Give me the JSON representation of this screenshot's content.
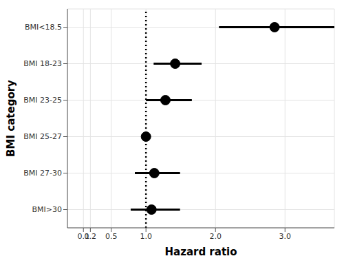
{
  "chart_data": {
    "type": "forest",
    "categories": [
      "BMI<18.5",
      "BMI 18-23",
      "BMI 23-25",
      "BMI 25-27",
      "BMI 27-30",
      "BMI>30"
    ],
    "values": [
      2.85,
      1.42,
      1.28,
      1.0,
      1.12,
      1.08
    ],
    "ci_lower": [
      2.05,
      1.11,
      1.0,
      null,
      0.84,
      0.78
    ],
    "ci_upper": [
      3.75,
      1.8,
      1.66,
      null,
      1.49,
      1.49
    ],
    "color": "#000000",
    "reference_x": 1,
    "xlabel": "Hazard ratio",
    "ylabel": "BMI category",
    "xlim": [
      -0.13,
      3.71
    ],
    "xticks": [
      {
        "value": 0.1,
        "label": "0.1"
      },
      {
        "value": 0.2,
        "label": "0.2"
      },
      {
        "value": 0.5,
        "label": "0.5"
      },
      {
        "value": 1,
        "label": "1.0"
      },
      {
        "value": 2,
        "label": "2.0"
      },
      {
        "value": 3,
        "label": "3.0"
      }
    ],
    "grid": true
  }
}
